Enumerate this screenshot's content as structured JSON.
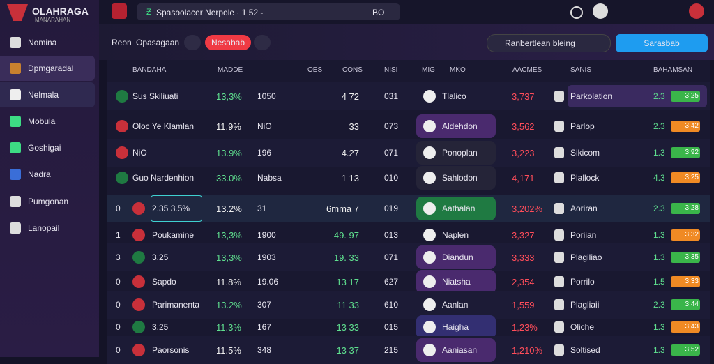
{
  "header": {
    "logo_title": "OLAHRAGA",
    "logo_subtitle": "MANARAHAN",
    "search_text": "Spasoolacer Nerpole · 1 52 -",
    "search_badge": "BO"
  },
  "sidebar": {
    "items": [
      "Nomina",
      "Dpmgaradal",
      "Nelmala",
      "Mobula",
      "Goshigai",
      "Nadra",
      "Pumgonan",
      "Lanopail"
    ]
  },
  "toolbar": {
    "label": "Reon",
    "title": "Opasagaan",
    "button": "Nesabab",
    "search": "Ranbertlean bleing",
    "action": "Sarasbab"
  },
  "table": {
    "columns": [
      "BANDAHA",
      "MADDE",
      "OES",
      "CONS",
      "NISI",
      "MIG",
      "MKO",
      "AACMES",
      "SANIS",
      "BAHAMSAN"
    ],
    "rows": [
      {
        "name": "Sus Skiliuati",
        "pct": "13,3%",
        "c3": "1050",
        "c4": "4 72",
        "c5": "031",
        "team": "Tlalico",
        "val": "3,737",
        "opp": "Parkolation",
        "odds": "2.3",
        "badge": "3.25"
      },
      {
        "name": "Oloc Ye Klamlan",
        "pct": "11.9%",
        "c3": "NiO",
        "c4": "33",
        "c5": "073",
        "team": "Aldehdon",
        "val": "3,562",
        "opp": "Parlop",
        "odds": "2.3",
        "badge": "3.42"
      },
      {
        "name": "NiO",
        "pct": "13.9%",
        "c3": "196",
        "c4": "4.27",
        "c5": "071",
        "team": "Ponoplan",
        "val": "3,223",
        "opp": "Sikicom",
        "odds": "1.3",
        "badge": "3.92"
      },
      {
        "name": "Guo Nardenhion",
        "pct": "33.0%",
        "c3": "Nabsa",
        "c4": "1 13",
        "c5": "010",
        "team": "Sahlodon",
        "val": "4,171",
        "opp": "Plallock",
        "odds": "4.3",
        "badge": "3.25"
      },
      {
        "rank": "0",
        "name": "2.35 3.5%",
        "pct": "13.2%",
        "c3": "31",
        "c4": "6mma 7",
        "c5": "019",
        "team": "Aathalan",
        "val": "3,202%",
        "opp": "Aoriran",
        "odds": "2.3",
        "badge": "3.28"
      },
      {
        "rank": "1",
        "name": "Poukamine",
        "pct": "13,3%",
        "c3": "1900",
        "c4": "49. 97",
        "c5": "013",
        "team": "Naplen",
        "val": "3,327",
        "opp": "Poriian",
        "odds": "1.3",
        "badge": "3.32"
      },
      {
        "rank": "3",
        "name": "3.25",
        "pct": "13,3%",
        "c3": "1903",
        "c4": "19. 33",
        "c5": "071",
        "team": "Diandun",
        "val": "3,333",
        "opp": "Plagiliao",
        "odds": "1.3",
        "badge": "3.35"
      },
      {
        "rank": "0",
        "name": "Sapdo",
        "pct": "11.8%",
        "c3": "19.06",
        "c4": "13 17",
        "c5": "627",
        "team": "Niatsha",
        "val": "2,354",
        "opp": "Porrilo",
        "odds": "1.5",
        "badge": "3.33"
      },
      {
        "rank": "0",
        "name": "Parimanenta",
        "pct": "13.2%",
        "c3": "307",
        "c4": "11 33",
        "c5": "610",
        "team": "Aanlan",
        "val": "1,559",
        "opp": "Plagliaii",
        "odds": "2.3",
        "badge": "3.44"
      },
      {
        "rank": "0",
        "name": "3.25",
        "pct": "11.3%",
        "c3": "167",
        "c4": "13 33",
        "c5": "015",
        "team": "Haigha",
        "val": "1,23%",
        "opp": "Oliche",
        "odds": "1.3",
        "badge": "3.43"
      },
      {
        "rank": "0",
        "name": "Paorsonis",
        "pct": "11.5%",
        "c3": "348",
        "c4": "13 37",
        "c5": "215",
        "team": "Aaniasan",
        "val": "1,210%",
        "opp": "Soltised",
        "odds": "1.3",
        "badge": "3.52"
      }
    ]
  }
}
